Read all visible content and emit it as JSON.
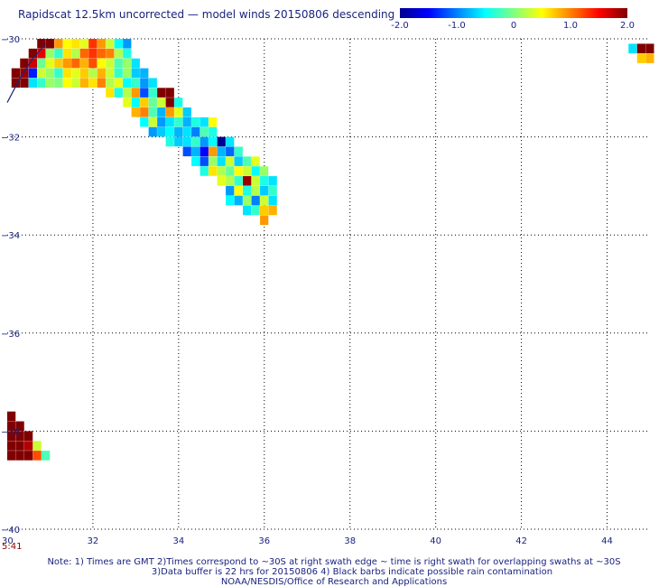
{
  "chart_data": {
    "type": "heatmap",
    "title": "Rapidscat 12.5km uncorrected — model winds 20150806 descending",
    "xlim": [
      30,
      45
    ],
    "ylim": [
      -40,
      -30
    ],
    "x_ticks": [
      "32",
      "34",
      "36",
      "38",
      "40",
      "42",
      "44"
    ],
    "x_tick_values": [
      32,
      34,
      36,
      38,
      40,
      42,
      44
    ],
    "y_ticks": [
      "-30",
      "-32",
      "-34",
      "-36",
      "-38",
      "-40"
    ],
    "y_tick_values": [
      -30,
      -32,
      -34,
      -36,
      -38,
      -40
    ],
    "x_start_label": "30",
    "grid": true,
    "colorbar": {
      "min": -2.0,
      "max": 2.0,
      "tick_labels": [
        "-2.0",
        "-1.0",
        "0",
        "1.0",
        "2.0"
      ],
      "tick_values": [
        -2.0,
        -1.0,
        0,
        1.0,
        2.0
      ],
      "colormap": "jet"
    },
    "time_label": "5:41",
    "cell_size_deg": [
      0.25,
      0.25
    ],
    "cells": [
      {
        "lon": 30.7,
        "lat": -30.0,
        "v": 2.0
      },
      {
        "lon": 30.9,
        "lat": -30.0,
        "v": 2.0
      },
      {
        "lon": 31.1,
        "lat": -30.0,
        "v": 0.9
      },
      {
        "lon": 31.3,
        "lat": -30.0,
        "v": 0.5
      },
      {
        "lon": 31.5,
        "lat": -30.0,
        "v": 0.6
      },
      {
        "lon": 31.7,
        "lat": -30.0,
        "v": 0.4
      },
      {
        "lon": 31.9,
        "lat": -30.0,
        "v": 1.3
      },
      {
        "lon": 32.1,
        "lat": -30.0,
        "v": 0.9
      },
      {
        "lon": 32.3,
        "lat": -30.0,
        "v": 0.3
      },
      {
        "lon": 32.5,
        "lat": -30.0,
        "v": -0.5
      },
      {
        "lon": 32.7,
        "lat": -30.0,
        "v": -0.9
      },
      {
        "lon": 30.5,
        "lat": -30.2,
        "v": 2.0
      },
      {
        "lon": 30.7,
        "lat": -30.2,
        "v": 1.6
      },
      {
        "lon": 30.9,
        "lat": -30.2,
        "v": 0.1
      },
      {
        "lon": 31.1,
        "lat": -30.2,
        "v": -0.3
      },
      {
        "lon": 31.3,
        "lat": -30.2,
        "v": 0.6
      },
      {
        "lon": 31.5,
        "lat": -30.2,
        "v": 0.2
      },
      {
        "lon": 31.7,
        "lat": -30.2,
        "v": 1.1
      },
      {
        "lon": 31.9,
        "lat": -30.2,
        "v": 1.3
      },
      {
        "lon": 32.1,
        "lat": -30.2,
        "v": 1.1
      },
      {
        "lon": 32.3,
        "lat": -30.2,
        "v": 1.0
      },
      {
        "lon": 32.5,
        "lat": -30.2,
        "v": 0.2
      },
      {
        "lon": 32.7,
        "lat": -30.2,
        "v": -0.4
      },
      {
        "lon": 30.3,
        "lat": -30.4,
        "v": 2.0
      },
      {
        "lon": 30.5,
        "lat": -30.4,
        "v": 1.7
      },
      {
        "lon": 30.7,
        "lat": -30.4,
        "v": -0.1
      },
      {
        "lon": 30.9,
        "lat": -30.4,
        "v": 0.4
      },
      {
        "lon": 31.1,
        "lat": -30.4,
        "v": 0.7
      },
      {
        "lon": 31.3,
        "lat": -30.4,
        "v": 0.9
      },
      {
        "lon": 31.5,
        "lat": -30.4,
        "v": 1.1
      },
      {
        "lon": 31.7,
        "lat": -30.4,
        "v": 0.8
      },
      {
        "lon": 31.9,
        "lat": -30.4,
        "v": 1.2
      },
      {
        "lon": 32.1,
        "lat": -30.4,
        "v": 0.5
      },
      {
        "lon": 32.3,
        "lat": -30.4,
        "v": 0.3
      },
      {
        "lon": 32.5,
        "lat": -30.4,
        "v": -0.2
      },
      {
        "lon": 32.7,
        "lat": -30.4,
        "v": 0.1
      },
      {
        "lon": 32.9,
        "lat": -30.4,
        "v": -0.6
      },
      {
        "lon": 30.1,
        "lat": -30.6,
        "v": 2.0
      },
      {
        "lon": 30.3,
        "lat": -30.6,
        "v": 1.9
      },
      {
        "lon": 30.5,
        "lat": -30.6,
        "v": -1.4
      },
      {
        "lon": 30.7,
        "lat": -30.6,
        "v": 0.3
      },
      {
        "lon": 30.9,
        "lat": -30.6,
        "v": 0.1
      },
      {
        "lon": 31.1,
        "lat": -30.6,
        "v": -0.3
      },
      {
        "lon": 31.3,
        "lat": -30.6,
        "v": 0.6
      },
      {
        "lon": 31.5,
        "lat": -30.6,
        "v": 0.4
      },
      {
        "lon": 31.7,
        "lat": -30.6,
        "v": 0.7
      },
      {
        "lon": 31.9,
        "lat": -30.6,
        "v": 0.2
      },
      {
        "lon": 32.1,
        "lat": -30.6,
        "v": 0.8
      },
      {
        "lon": 32.3,
        "lat": -30.6,
        "v": 0.3
      },
      {
        "lon": 32.5,
        "lat": -30.6,
        "v": -0.3
      },
      {
        "lon": 32.7,
        "lat": -30.6,
        "v": 0.1
      },
      {
        "lon": 32.9,
        "lat": -30.6,
        "v": -0.7
      },
      {
        "lon": 33.1,
        "lat": -30.6,
        "v": -0.8
      },
      {
        "lon": 30.1,
        "lat": -30.8,
        "v": 2.0
      },
      {
        "lon": 30.3,
        "lat": -30.8,
        "v": 2.0
      },
      {
        "lon": 30.5,
        "lat": -30.8,
        "v": -0.6
      },
      {
        "lon": 30.7,
        "lat": -30.8,
        "v": -0.3
      },
      {
        "lon": 30.9,
        "lat": -30.8,
        "v": 0.1
      },
      {
        "lon": 31.1,
        "lat": -30.8,
        "v": 0.0
      },
      {
        "lon": 31.3,
        "lat": -30.8,
        "v": 0.5
      },
      {
        "lon": 31.5,
        "lat": -30.8,
        "v": 0.3
      },
      {
        "lon": 31.7,
        "lat": -30.8,
        "v": 0.8
      },
      {
        "lon": 31.9,
        "lat": -30.8,
        "v": 0.6
      },
      {
        "lon": 32.1,
        "lat": -30.8,
        "v": 1.0
      },
      {
        "lon": 32.3,
        "lat": -30.8,
        "v": 0.2
      },
      {
        "lon": 32.5,
        "lat": -30.8,
        "v": 0.4
      },
      {
        "lon": 32.7,
        "lat": -30.8,
        "v": -0.5
      },
      {
        "lon": 32.9,
        "lat": -30.8,
        "v": -0.3
      },
      {
        "lon": 33.1,
        "lat": -30.8,
        "v": -0.9
      },
      {
        "lon": 33.3,
        "lat": -30.8,
        "v": -0.6
      },
      {
        "lon": 32.3,
        "lat": -31.0,
        "v": 0.6
      },
      {
        "lon": 32.5,
        "lat": -31.0,
        "v": -0.4
      },
      {
        "lon": 32.7,
        "lat": -31.0,
        "v": 0.2
      },
      {
        "lon": 32.9,
        "lat": -31.0,
        "v": 0.9
      },
      {
        "lon": 33.1,
        "lat": -31.0,
        "v": -1.2
      },
      {
        "lon": 33.3,
        "lat": -31.0,
        "v": -0.3
      },
      {
        "lon": 33.5,
        "lat": -31.0,
        "v": 2.0
      },
      {
        "lon": 33.7,
        "lat": -31.0,
        "v": 2.0
      },
      {
        "lon": 32.7,
        "lat": -31.2,
        "v": 0.4
      },
      {
        "lon": 32.9,
        "lat": -31.2,
        "v": -0.5
      },
      {
        "lon": 33.1,
        "lat": -31.2,
        "v": 0.7
      },
      {
        "lon": 33.3,
        "lat": -31.2,
        "v": -0.1
      },
      {
        "lon": 33.5,
        "lat": -31.2,
        "v": 0.3
      },
      {
        "lon": 33.7,
        "lat": -31.2,
        "v": 2.0
      },
      {
        "lon": 33.9,
        "lat": -31.2,
        "v": -0.4
      },
      {
        "lon": 32.9,
        "lat": -31.4,
        "v": 0.8
      },
      {
        "lon": 33.1,
        "lat": -31.4,
        "v": 1.0
      },
      {
        "lon": 33.3,
        "lat": -31.4,
        "v": -0.2
      },
      {
        "lon": 33.5,
        "lat": -31.4,
        "v": -0.8
      },
      {
        "lon": 33.7,
        "lat": -31.4,
        "v": 0.9
      },
      {
        "lon": 33.9,
        "lat": -31.4,
        "v": 0.4
      },
      {
        "lon": 34.1,
        "lat": -31.4,
        "v": -0.7
      },
      {
        "lon": 33.1,
        "lat": -31.6,
        "v": -0.5
      },
      {
        "lon": 33.3,
        "lat": -31.6,
        "v": 0.3
      },
      {
        "lon": 33.5,
        "lat": -31.6,
        "v": -0.9
      },
      {
        "lon": 33.7,
        "lat": -31.6,
        "v": -0.6
      },
      {
        "lon": 33.9,
        "lat": -31.6,
        "v": -0.3
      },
      {
        "lon": 34.1,
        "lat": -31.6,
        "v": -0.8
      },
      {
        "lon": 34.3,
        "lat": -31.6,
        "v": -0.4
      },
      {
        "lon": 34.5,
        "lat": -31.6,
        "v": -0.6
      },
      {
        "lon": 34.7,
        "lat": -31.6,
        "v": 0.5
      },
      {
        "lon": 33.3,
        "lat": -31.8,
        "v": -0.9
      },
      {
        "lon": 33.5,
        "lat": -31.8,
        "v": -0.7
      },
      {
        "lon": 33.7,
        "lat": -31.8,
        "v": -0.5
      },
      {
        "lon": 33.9,
        "lat": -31.8,
        "v": -0.8
      },
      {
        "lon": 34.1,
        "lat": -31.8,
        "v": -0.6
      },
      {
        "lon": 34.3,
        "lat": -31.8,
        "v": -1.0
      },
      {
        "lon": 34.5,
        "lat": -31.8,
        "v": -0.2
      },
      {
        "lon": 34.7,
        "lat": -31.8,
        "v": -0.4
      },
      {
        "lon": 33.7,
        "lat": -32.0,
        "v": -0.4
      },
      {
        "lon": 33.9,
        "lat": -32.0,
        "v": -0.7
      },
      {
        "lon": 34.1,
        "lat": -32.0,
        "v": -0.6
      },
      {
        "lon": 34.3,
        "lat": -32.0,
        "v": -0.3
      },
      {
        "lon": 34.5,
        "lat": -32.0,
        "v": -0.9
      },
      {
        "lon": 34.7,
        "lat": -32.0,
        "v": -0.5
      },
      {
        "lon": 34.9,
        "lat": -32.0,
        "v": -2.0
      },
      {
        "lon": 35.1,
        "lat": -32.0,
        "v": -0.6
      },
      {
        "lon": 34.1,
        "lat": -32.2,
        "v": -1.2
      },
      {
        "lon": 34.3,
        "lat": -32.2,
        "v": -0.8
      },
      {
        "lon": 34.5,
        "lat": -32.2,
        "v": -1.5
      },
      {
        "lon": 34.7,
        "lat": -32.2,
        "v": 0.9
      },
      {
        "lon": 34.9,
        "lat": -32.2,
        "v": -0.8
      },
      {
        "lon": 35.1,
        "lat": -32.2,
        "v": -1.1
      },
      {
        "lon": 35.3,
        "lat": -32.2,
        "v": -0.3
      },
      {
        "lon": 34.3,
        "lat": -32.4,
        "v": -0.5
      },
      {
        "lon": 34.5,
        "lat": -32.4,
        "v": -1.2
      },
      {
        "lon": 34.7,
        "lat": -32.4,
        "v": 0.1
      },
      {
        "lon": 34.9,
        "lat": -32.4,
        "v": -0.6
      },
      {
        "lon": 35.1,
        "lat": -32.4,
        "v": 0.3
      },
      {
        "lon": 35.3,
        "lat": -32.4,
        "v": -0.7
      },
      {
        "lon": 35.5,
        "lat": -32.4,
        "v": -0.2
      },
      {
        "lon": 35.7,
        "lat": -32.4,
        "v": 0.4
      },
      {
        "lon": 34.5,
        "lat": -32.6,
        "v": -0.4
      },
      {
        "lon": 34.7,
        "lat": -32.6,
        "v": 0.6
      },
      {
        "lon": 34.9,
        "lat": -32.6,
        "v": 0.2
      },
      {
        "lon": 35.1,
        "lat": -32.6,
        "v": -0.1
      },
      {
        "lon": 35.3,
        "lat": -32.6,
        "v": 0.5
      },
      {
        "lon": 35.5,
        "lat": -32.6,
        "v": 0.3
      },
      {
        "lon": 35.7,
        "lat": -32.6,
        "v": -0.5
      },
      {
        "lon": 35.9,
        "lat": -32.6,
        "v": 0.1
      },
      {
        "lon": 34.9,
        "lat": -32.8,
        "v": 0.4
      },
      {
        "lon": 35.1,
        "lat": -32.8,
        "v": 0.2
      },
      {
        "lon": 35.3,
        "lat": -32.8,
        "v": -0.3
      },
      {
        "lon": 35.5,
        "lat": -32.8,
        "v": 1.9
      },
      {
        "lon": 35.7,
        "lat": -32.8,
        "v": 0.3
      },
      {
        "lon": 35.9,
        "lat": -32.8,
        "v": -0.4
      },
      {
        "lon": 36.1,
        "lat": -32.8,
        "v": -0.6
      },
      {
        "lon": 35.1,
        "lat": -33.0,
        "v": -0.9
      },
      {
        "lon": 35.3,
        "lat": -33.0,
        "v": 0.5
      },
      {
        "lon": 35.5,
        "lat": -33.0,
        "v": -0.4
      },
      {
        "lon": 35.7,
        "lat": -33.0,
        "v": 0.2
      },
      {
        "lon": 35.9,
        "lat": -33.0,
        "v": -0.7
      },
      {
        "lon": 36.1,
        "lat": -33.0,
        "v": -0.3
      },
      {
        "lon": 35.1,
        "lat": -33.2,
        "v": -0.5
      },
      {
        "lon": 35.3,
        "lat": -33.2,
        "v": -0.8
      },
      {
        "lon": 35.5,
        "lat": -33.2,
        "v": 0.1
      },
      {
        "lon": 35.7,
        "lat": -33.2,
        "v": -1.0
      },
      {
        "lon": 35.9,
        "lat": -33.2,
        "v": 0.3
      },
      {
        "lon": 36.1,
        "lat": -33.2,
        "v": -0.6
      },
      {
        "lon": 35.5,
        "lat": -33.4,
        "v": -0.6
      },
      {
        "lon": 35.7,
        "lat": -33.4,
        "v": -0.3
      },
      {
        "lon": 35.9,
        "lat": -33.4,
        "v": 0.7
      },
      {
        "lon": 36.1,
        "lat": -33.4,
        "v": 0.8
      },
      {
        "lon": 35.9,
        "lat": -33.6,
        "v": 0.9
      },
      {
        "lon": 30.0,
        "lat": -37.6,
        "v": 2.0
      },
      {
        "lon": 30.0,
        "lat": -37.8,
        "v": 2.0
      },
      {
        "lon": 30.2,
        "lat": -37.8,
        "v": 2.0
      },
      {
        "lon": 30.0,
        "lat": -38.0,
        "v": 2.0
      },
      {
        "lon": 30.2,
        "lat": -38.0,
        "v": 2.0
      },
      {
        "lon": 30.4,
        "lat": -38.0,
        "v": 2.0
      },
      {
        "lon": 30.0,
        "lat": -38.2,
        "v": 2.0
      },
      {
        "lon": 30.2,
        "lat": -38.2,
        "v": 2.0
      },
      {
        "lon": 30.4,
        "lat": -38.2,
        "v": 1.8
      },
      {
        "lon": 30.6,
        "lat": -38.2,
        "v": 0.3
      },
      {
        "lon": 30.0,
        "lat": -38.4,
        "v": 2.0
      },
      {
        "lon": 30.2,
        "lat": -38.4,
        "v": 2.0
      },
      {
        "lon": 30.4,
        "lat": -38.4,
        "v": 2.0
      },
      {
        "lon": 30.6,
        "lat": -38.4,
        "v": 1.2
      },
      {
        "lon": 30.8,
        "lat": -38.4,
        "v": -0.2
      },
      {
        "lon": 44.5,
        "lat": -30.1,
        "v": -0.6
      },
      {
        "lon": 44.7,
        "lat": -30.1,
        "v": 2.0
      },
      {
        "lon": 44.9,
        "lat": -30.1,
        "v": 2.0
      },
      {
        "lon": 44.7,
        "lat": -30.3,
        "v": 0.7
      },
      {
        "lon": 44.9,
        "lat": -30.3,
        "v": 0.8
      }
    ],
    "coast_line": [
      {
        "lon": 30.0,
        "lat": -31.3
      },
      {
        "lon": 30.3,
        "lat": -30.8
      },
      {
        "lon": 30.6,
        "lat": -30.4
      },
      {
        "lon": 30.9,
        "lat": -30.1
      }
    ]
  },
  "footer": {
    "note_line1": "Note: 1) Times are GMT 2)Times correspond to ~30S at right swath edge ~ time is right swath for overlapping swaths at ~30S",
    "note_line2": "3)Data buffer is 22 hrs for 20150806 4) Black barbs indicate possible rain contamination",
    "note_line3": "NOAA/NESDIS/Office of Research and Applications"
  }
}
